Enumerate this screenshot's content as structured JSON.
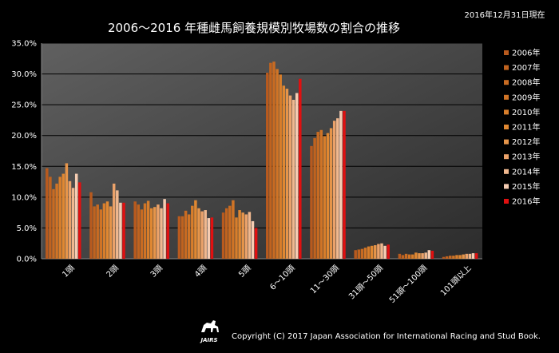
{
  "chart_data": {
    "type": "bar",
    "title": "2006～2016 年種雌馬飼養規模別牧場数の割合の推移",
    "date_note": "2016年12月31日現在",
    "categories": [
      "1頭",
      "2頭",
      "3頭",
      "4頭",
      "5頭",
      "6～10頭",
      "11～30頭",
      "31頭～50頭",
      "51頭～100頭",
      "101頭以上"
    ],
    "yticks": [
      "0.0%",
      "5.0%",
      "10.0%",
      "15.0%",
      "20.0%",
      "25.0%",
      "30.0%",
      "35.0%"
    ],
    "ylim": [
      0,
      35
    ],
    "grid": true,
    "legend_position": "right",
    "series": [
      {
        "name": "2006年",
        "color": "#b85a1e",
        "values": [
          14.7,
          10.8,
          9.3,
          6.9,
          7.5,
          30.2,
          18.3,
          1.4,
          0.8,
          0.3
        ]
      },
      {
        "name": "2007年",
        "color": "#c0631f",
        "values": [
          13.3,
          8.5,
          8.8,
          6.9,
          8.2,
          31.8,
          19.6,
          1.5,
          0.6,
          0.4
        ]
      },
      {
        "name": "2008年",
        "color": "#c86b22",
        "values": [
          11.3,
          8.8,
          8.0,
          7.8,
          8.6,
          32.0,
          20.6,
          1.6,
          0.8,
          0.5
        ]
      },
      {
        "name": "2009年",
        "color": "#d07426",
        "values": [
          12.2,
          8.0,
          9.0,
          7.2,
          9.5,
          30.8,
          20.9,
          1.8,
          0.7,
          0.5
        ]
      },
      {
        "name": "2010年",
        "color": "#d87e2b",
        "values": [
          13.3,
          9.0,
          9.4,
          8.6,
          6.7,
          29.9,
          19.9,
          2.0,
          0.7,
          0.6
        ]
      },
      {
        "name": "2011年",
        "color": "#e08832",
        "values": [
          13.8,
          9.3,
          8.2,
          9.5,
          7.9,
          28.1,
          20.4,
          2.1,
          1.0,
          0.6
        ]
      },
      {
        "name": "2012年",
        "color": "#e6954a",
        "values": [
          15.5,
          8.5,
          8.4,
          8.2,
          7.5,
          27.6,
          21.2,
          2.2,
          0.9,
          0.7
        ]
      },
      {
        "name": "2013年",
        "color": "#eba26a",
        "values": [
          12.6,
          12.2,
          8.8,
          7.7,
          7.2,
          26.5,
          22.4,
          2.4,
          0.9,
          0.8
        ]
      },
      {
        "name": "2014年",
        "color": "#f0b88f",
        "values": [
          11.5,
          11.1,
          8.2,
          7.9,
          7.6,
          25.8,
          22.8,
          2.5,
          1.0,
          0.8
        ]
      },
      {
        "name": "2015年",
        "color": "#f5ccb2",
        "values": [
          13.8,
          9.1,
          9.7,
          6.6,
          6.1,
          26.9,
          24.0,
          2.1,
          1.4,
          0.9
        ]
      },
      {
        "name": "2016年",
        "color": "#e01010",
        "values": [
          12.4,
          9.1,
          9.0,
          6.7,
          5.0,
          29.2,
          24.0,
          2.3,
          1.3,
          0.9
        ]
      }
    ]
  },
  "footer": {
    "copyright": "Copyright (C) 2017 Japan Association for International Racing and Stud Book.",
    "logo_text": "JAIRS"
  }
}
